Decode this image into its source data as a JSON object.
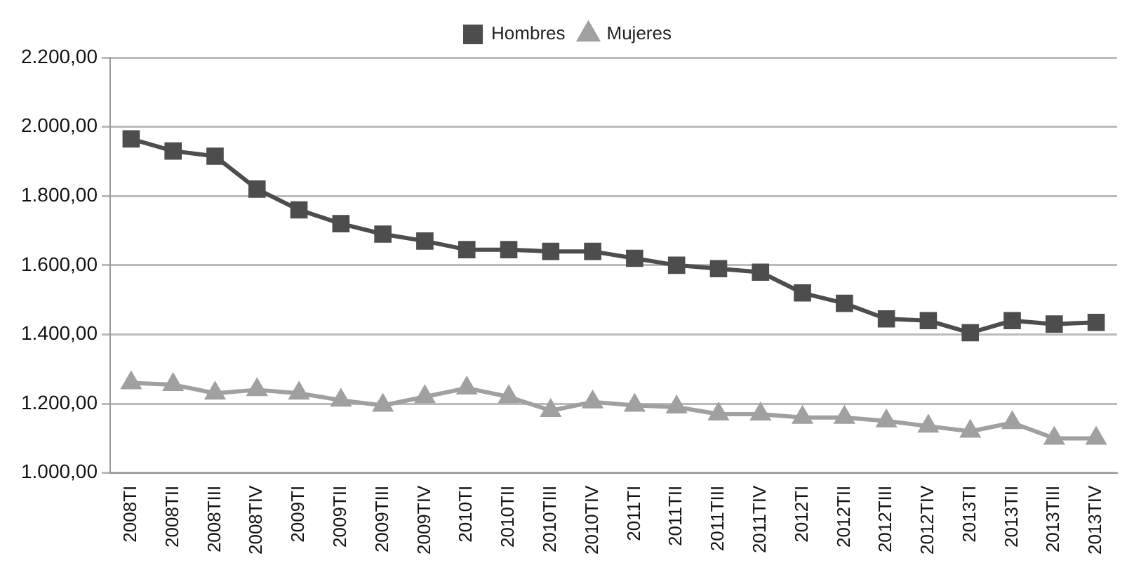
{
  "chart_data": {
    "type": "line",
    "categories": [
      "2008TI",
      "2008TII",
      "2008TIII",
      "2008TIV",
      "2009TI",
      "2009TII",
      "2009TIII",
      "2009TIV",
      "2010TI",
      "2010TII",
      "2010TIII",
      "2010TIV",
      "2011TI",
      "2011TII",
      "2011TIII",
      "2011TIV",
      "2012TI",
      "2012TII",
      "2012TIII",
      "2012TIV",
      "2013TI",
      "2013TII",
      "2013TIII",
      "2013TIV"
    ],
    "series": [
      {
        "name": "Hombres",
        "color": "#4d4d4d",
        "marker": "square",
        "values": [
          1965,
          1930,
          1915,
          1820,
          1760,
          1720,
          1690,
          1670,
          1645,
          1645,
          1640,
          1640,
          1620,
          1600,
          1590,
          1580,
          1520,
          1490,
          1445,
          1440,
          1405,
          1440,
          1430,
          1435
        ]
      },
      {
        "name": "Mujeres",
        "color": "#a0a0a0",
        "marker": "triangle",
        "values": [
          1260,
          1255,
          1230,
          1240,
          1230,
          1210,
          1195,
          1220,
          1245,
          1220,
          1180,
          1205,
          1195,
          1190,
          1170,
          1170,
          1160,
          1160,
          1150,
          1135,
          1120,
          1145,
          1100,
          1100
        ]
      }
    ],
    "ylim": [
      1000,
      2200
    ],
    "yticks": [
      {
        "value": 1000,
        "label": "1.000,00"
      },
      {
        "value": 1200,
        "label": "1.200,00"
      },
      {
        "value": 1400,
        "label": "1.400,00"
      },
      {
        "value": 1600,
        "label": "1.600,00"
      },
      {
        "value": 1800,
        "label": "1.800,00"
      },
      {
        "value": 2000,
        "label": "2.000,00"
      },
      {
        "value": 2200,
        "label": "2.200,00"
      }
    ],
    "grid": "y",
    "legend": "top",
    "line_style": "solid"
  }
}
